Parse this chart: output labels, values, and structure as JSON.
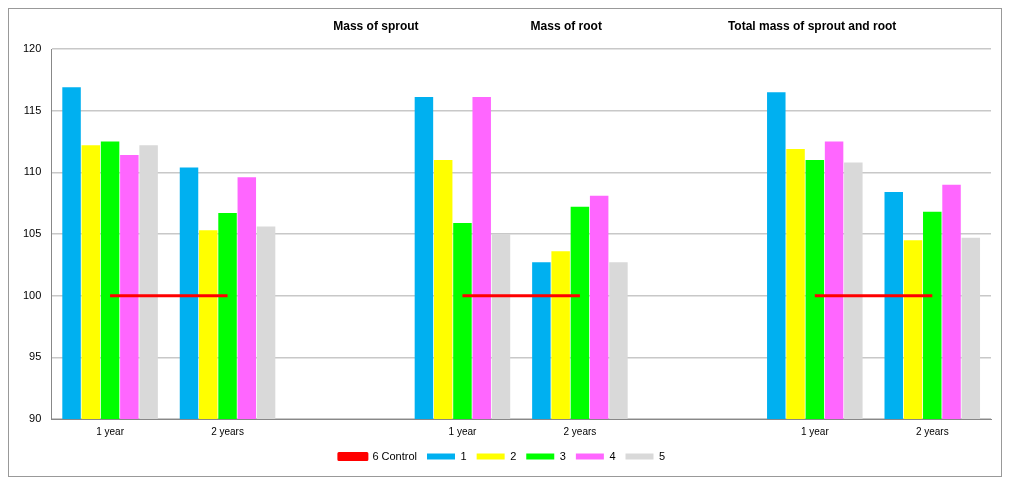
{
  "chart_data": {
    "type": "bar",
    "annotations": [
      "Mass of sprout",
      "Mass of root",
      "Total mass of sprout and root"
    ],
    "categories": [
      "1 year",
      "2 years",
      null,
      "1 year",
      "2 years",
      null,
      "1 year",
      "2 years"
    ],
    "series": [
      {
        "name": "1",
        "color": "#00b0f0",
        "values": [
          116.9,
          110.4,
          null,
          116.1,
          102.7,
          null,
          116.5,
          108.4
        ]
      },
      {
        "name": "2",
        "color": "#ffff00",
        "values": [
          112.2,
          105.3,
          null,
          111.0,
          103.6,
          null,
          111.9,
          104.5
        ]
      },
      {
        "name": "3",
        "color": "#00ff00",
        "values": [
          112.5,
          106.7,
          null,
          105.9,
          107.2,
          null,
          111.0,
          106.8
        ]
      },
      {
        "name": "4",
        "color": "#ff66ff",
        "values": [
          111.4,
          109.6,
          null,
          116.1,
          108.1,
          null,
          112.5,
          109.0
        ]
      },
      {
        "name": "5",
        "color": "#d9d9d9",
        "values": [
          112.2,
          105.6,
          null,
          105.0,
          102.7,
          null,
          110.8,
          104.7
        ]
      },
      {
        "name": "6 Control",
        "type": "line",
        "color": "#ff0000",
        "values": [
          100,
          100,
          null,
          null,
          null,
          null,
          null,
          null
        ]
      },
      {
        "type": "line",
        "color": "#ff0000",
        "values": [
          null,
          null,
          null,
          100,
          100,
          null,
          null,
          null
        ]
      },
      {
        "type": "line",
        "color": "#ff0000",
        "values": [
          null,
          null,
          null,
          null,
          null,
          null,
          100,
          100
        ]
      }
    ],
    "ylim": [
      90,
      120
    ],
    "yticks": [
      90,
      95,
      100,
      105,
      110,
      115,
      120
    ],
    "grid": "y",
    "legend": "bottom",
    "marker": "none"
  }
}
